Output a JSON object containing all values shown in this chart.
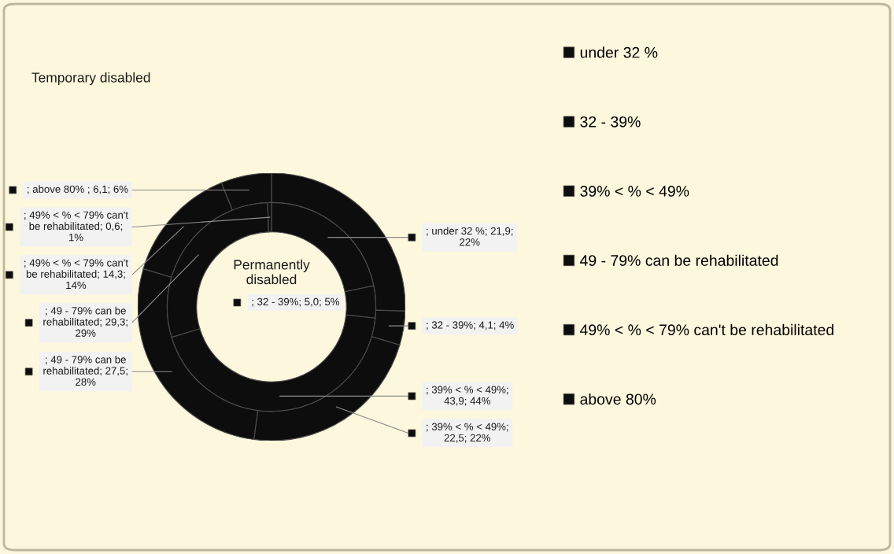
{
  "chart_data": {
    "type": "donut",
    "categories": [
      "under 32 %",
      "32 - 39%",
      "39% < % < 49%",
      "49 - 79% can be rehabilitated",
      "49% < % < 79% can't be rehabilitated",
      "above 80%"
    ],
    "colors": [
      "#0d0d0d",
      "#0d0d0d",
      "#0d0d0d",
      "#0d0d0d",
      "#0d0d0d",
      "#0d0d0d"
    ],
    "series": [
      {
        "name": "Temporary disabled",
        "values": [
          25.5,
          4.1,
          22.5,
          27.5,
          14.3,
          6.1
        ],
        "value_labels": [
          null,
          "; 32 - 39%; 4,1; 4%",
          "; 39% < % < 49%; 22,5; 22%",
          "; 49 - 79% can be rehabilitated; 27,5; 28%",
          "; 49% < % < 79% can't be rehabilitated; 14,3; 14%",
          "; above 80% ; 6,1; 6%"
        ]
      },
      {
        "name": "Permanently disabled",
        "values": [
          21.9,
          5.0,
          43.9,
          29.3,
          0.6,
          null
        ],
        "value_labels": [
          "; under 32 %; 21,9; 22%",
          "; 32 - 39%; 5,0; 5%",
          "; 39% < % < 49%; 43,9; 44%",
          "; 49 - 79% can be rehabilitated; 29,3; 29%",
          "; 49% < % < 79% can't be rehabilitated; 0,6; 1%",
          null
        ]
      }
    ],
    "legend": "right"
  }
}
